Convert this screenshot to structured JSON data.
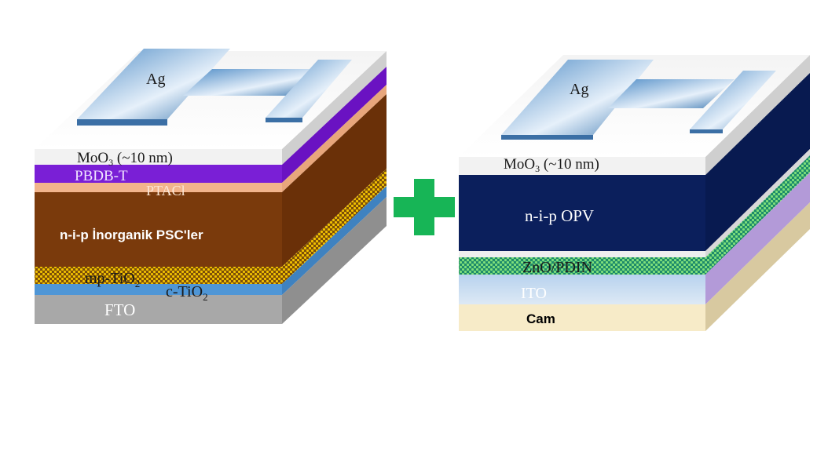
{
  "left_stack": {
    "electrode": "Ag",
    "layers": {
      "moo3": "MoO",
      "moo3_sub": "3",
      "moo3_suffix": " (~10 nm)",
      "pbdb": "PBDB-T",
      "ptacl": "PTACl",
      "absorber": "n-i-p İnorganik PSC'ler",
      "mp": "mp-TiO",
      "mp_sub": "2",
      "c": "c-TiO",
      "c_sub": "2",
      "fto": "FTO"
    },
    "colors": {
      "moo3": "#f2f2f2",
      "pbdb": "#7a1fd6",
      "ptacl": "#f2b48c",
      "absorber": "#7a3a0c",
      "mp": "#d9a800",
      "c": "#4f96d6",
      "fto": "#a8a8a8"
    }
  },
  "plus_sign": {
    "color": "#17b556"
  },
  "right_stack": {
    "electrode": "Ag",
    "layers": {
      "moo3": "MoO",
      "moo3_sub": "3",
      "moo3_suffix": " (~10 nm)",
      "opv": "n-i-p OPV",
      "zno": "ZnO/PDIN",
      "ito": "ITO",
      "glass": "Cam"
    },
    "colors": {
      "moo3": "#f2f2f2",
      "opv": "#0b1f5c",
      "zno": "#3ec45a",
      "ito": "#c4daf0",
      "glass": "#f7ebc8"
    }
  }
}
